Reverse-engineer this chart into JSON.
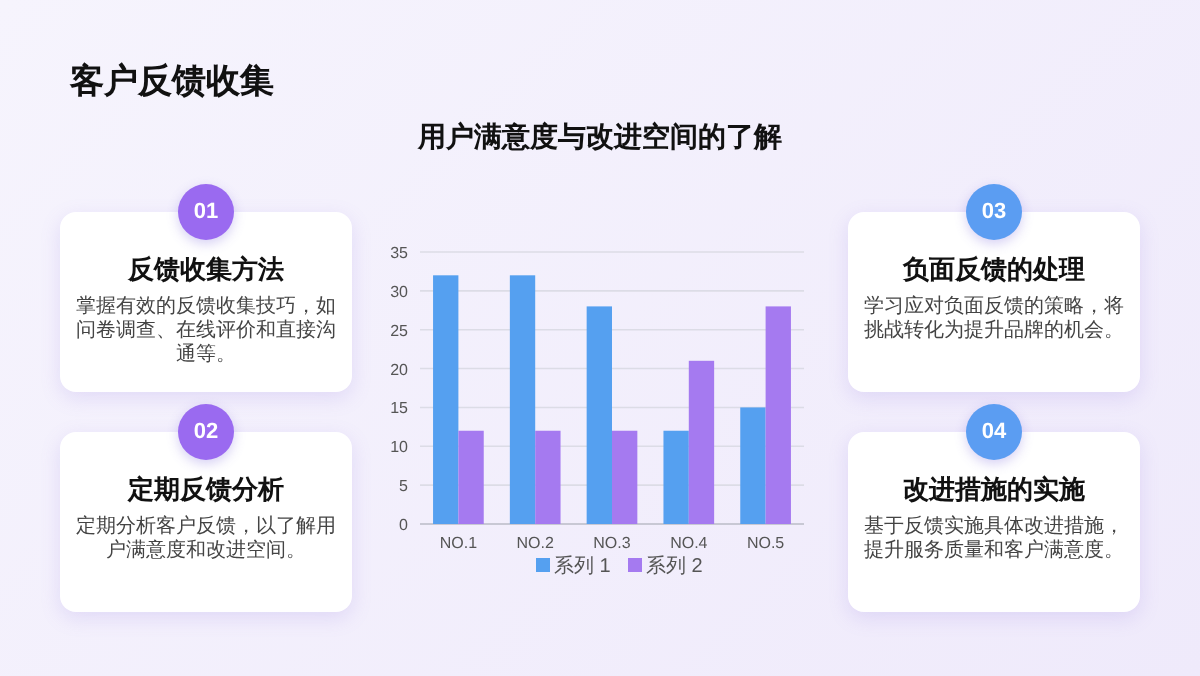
{
  "chart_data": [
    {
      "type": "other",
      "title": "客户反馈收集",
      "annotations": [
        "01",
        "反馈收集方法",
        "掌握有效的反馈收集技巧，如问卷调查、在线评价和直接沟通等。",
        "02",
        "定期反馈分析",
        "定期分析客户反馈，以了解用户满意度和改进空间。",
        "03",
        "负面反馈的处理",
        "学习应对负面反馈的策略，将挑战转化为提升品牌的机会。",
        "04",
        "改进措施的实施",
        "基于反馈实施具体改进措施，提升服务质量和客户满意度。"
      ],
      "colors": [
        "#9a6af0",
        "#9a6af0",
        "#5b9df2",
        "#5b9df2"
      ]
    },
    {
      "type": "bar",
      "title": "用户满意度与改进空间的了解",
      "categories": [
        "NO.1",
        "NO.2",
        "NO.3",
        "NO.4",
        "NO.5"
      ],
      "series": [
        {
          "name": "系列 1",
          "color": "#55a0f0",
          "values": [
            32,
            32,
            28,
            12,
            15
          ]
        },
        {
          "name": "系列 2",
          "color": "#a57af0",
          "values": [
            12,
            12,
            12,
            21,
            28
          ]
        }
      ],
      "ylim": [
        0,
        35
      ],
      "yticks": [
        0,
        5,
        10,
        15,
        20,
        25,
        30,
        35
      ],
      "grid": "y",
      "legend": "bottom"
    }
  ]
}
